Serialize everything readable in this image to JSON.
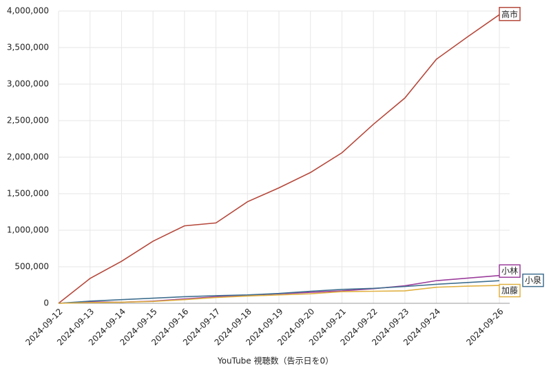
{
  "chart_data": {
    "type": "line",
    "x_label": "YouTube 視聴数（告示日を0）",
    "categories": [
      "2024-09-12",
      "2024-09-13",
      "2024-09-14",
      "2024-09-15",
      "2024-09-16",
      "2024-09-17",
      "2024-09-18",
      "2024-09-19",
      "2024-09-20",
      "2024-09-21",
      "2024-09-22",
      "2024-09-23",
      "2024-09-24",
      null,
      "2024-09-26"
    ],
    "series": [
      {
        "name": "高市",
        "color": "#b5473a",
        "values": [
          0,
          340000,
          575000,
          850000,
          1060000,
          1100000,
          1390000,
          1580000,
          1790000,
          2060000,
          2450000,
          2810000,
          3340000,
          3650000,
          3950000
        ]
      },
      {
        "name": "小林",
        "color": "#9b3d9b",
        "values": [
          0,
          20000,
          15000,
          30000,
          60000,
          90000,
          110000,
          130000,
          150000,
          170000,
          200000,
          240000,
          310000,
          345000,
          380000
        ]
      },
      {
        "name": "小泉",
        "color": "#3f6f8f",
        "values": [
          0,
          30000,
          50000,
          70000,
          90000,
          105000,
          115000,
          135000,
          165000,
          190000,
          205000,
          230000,
          260000,
          285000,
          310000
        ]
      },
      {
        "name": "加藤",
        "color": "#e0b040",
        "values": [
          0,
          10000,
          15000,
          25000,
          50000,
          80000,
          100000,
          115000,
          130000,
          160000,
          165000,
          170000,
          220000,
          235000,
          245000
        ]
      }
    ],
    "ylim": [
      0,
      4000000
    ],
    "yticks": [
      0,
      {
        "value": 500000,
        "label": "500,000"
      },
      {
        "value": 1000000,
        "label": "1,000,000"
      },
      {
        "value": 1500000,
        "label": "1,500,000"
      },
      {
        "value": 2000000,
        "label": "2,000,000"
      },
      {
        "value": 2500000,
        "label": "2,500,000"
      },
      {
        "value": 3000000,
        "label": "3,000,000"
      },
      {
        "value": 3500000,
        "label": "3,500,000"
      },
      {
        "value": 4000000,
        "label": "4,000,000"
      }
    ],
    "grid": true
  }
}
